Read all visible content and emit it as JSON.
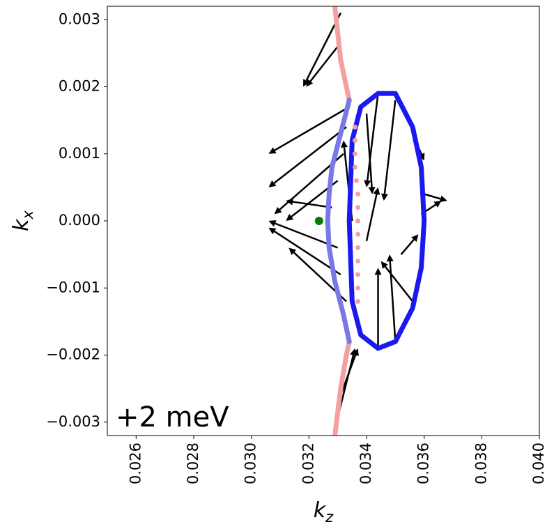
{
  "chart_data": {
    "type": "scatter",
    "xlabel": {
      "symbol": "k",
      "subscript": "z"
    },
    "ylabel": {
      "symbol": "k",
      "subscript": "x"
    },
    "annotation": "+2 meV",
    "xlim": [
      0.025,
      0.04
    ],
    "ylim": [
      -0.0032,
      0.0032
    ],
    "xticks": [
      0.026,
      0.028,
      {
        "value": 0.03,
        "label": "0.030"
      },
      0.032,
      0.034,
      0.036,
      0.038,
      {
        "value": 0.04,
        "label": "0.040"
      }
    ],
    "yticks": [
      {
        "value": -0.003,
        "label": "−0.003"
      },
      {
        "value": -0.002,
        "label": "−0.002"
      },
      {
        "value": -0.001,
        "label": "−0.001"
      },
      {
        "value": 0,
        "label": "0.000"
      },
      0.001,
      0.002,
      0.003
    ],
    "series": [
      {
        "type": "quiver",
        "color": "#000000",
        "x": [
          0.0334,
          0.0333,
          0.0332,
          0.033,
          0.0331,
          0.033,
          0.0328,
          0.033,
          0.0331,
          0.0333,
          0.0329,
          0.0331,
          0.0335,
          0.034,
          0.0352,
          0.0344,
          0.035,
          0.0356,
          0.036,
          0.0359,
          0.0344,
          0.035,
          0.0356,
          0.034
        ],
        "y": [
          0.0017,
          0.0014,
          0.001,
          0.0006,
          0.0031,
          0.0026,
          0.0002,
          -0.0004,
          -0.0008,
          -0.0012,
          -0.0031,
          -0.0026,
          0.0,
          -0.0003,
          -0.0005,
          0.0019,
          0.0018,
          0.0013,
          0.0004,
          0.0001,
          -0.0019,
          -0.0018,
          -0.0012,
          0.0016
        ],
        "u": [
          -0.0028,
          -0.0027,
          -0.0024,
          -0.0018,
          -0.0013,
          -0.0011,
          -0.0016,
          -0.0024,
          -0.0025,
          -0.002,
          0.0007,
          0.0006,
          -0.0003,
          0.0004,
          0.0006,
          -0.0004,
          -0.0004,
          0.0004,
          0.0008,
          0.0007,
          0.0,
          -0.0002,
          -0.0011,
          0.0002
        ],
        "v": [
          -0.0007,
          -0.0009,
          -0.0009,
          -0.0006,
          -0.0011,
          -0.0006,
          0.0001,
          0.0004,
          0.0007,
          0.0008,
          0.0012,
          0.0007,
          0.0012,
          0.0008,
          0.0003,
          -0.0014,
          -0.0015,
          -0.0004,
          -0.0001,
          0.0002,
          0.0012,
          0.0013,
          0.0006,
          -0.0012
        ]
      },
      {
        "type": "line",
        "color": "#f4a0a0",
        "x": [
          0.0329,
          0.0331,
          0.0333,
          0.0334,
          null,
          0.0334,
          0.0333,
          0.0331,
          0.0329
        ],
        "y": [
          0.0032,
          0.0024,
          0.002,
          0.0018,
          null,
          -0.0018,
          -0.002,
          -0.0025,
          -0.0032
        ]
      },
      {
        "type": "line",
        "color": "#7878e6",
        "x": [
          0.0334,
          0.0331,
          0.0328,
          0.0327,
          0.03265,
          0.0327,
          0.0329,
          0.0332,
          0.0334
        ],
        "y": [
          0.0018,
          0.0013,
          0.0008,
          0.0004,
          0.0,
          -0.0004,
          -0.0009,
          -0.0014,
          -0.0018
        ]
      },
      {
        "type": "line",
        "closed": true,
        "color": "#1a1aee",
        "x": [
          0.036,
          0.0359,
          0.0356,
          0.035,
          0.0344,
          0.0338,
          0.0335,
          0.03345,
          0.0334,
          0.03345,
          0.0335,
          0.0338,
          0.0344,
          0.035,
          0.0356,
          0.0359
        ],
        "y": [
          0.0,
          0.0008,
          0.0014,
          0.0019,
          0.0019,
          0.0017,
          0.0012,
          0.0006,
          0.0,
          -0.0006,
          -0.0012,
          -0.0017,
          -0.0019,
          -0.0018,
          -0.0013,
          -0.0007
        ]
      },
      {
        "type": "dots",
        "color": "#f4a0a0",
        "size": 3.5,
        "x": [
          0.0336,
          0.0336,
          0.0336,
          0.0336,
          0.03365,
          0.0337,
          0.0337,
          0.0337,
          0.0337,
          0.0337,
          0.0337,
          0.0337,
          0.0337,
          0.0337
        ],
        "y": [
          0.0014,
          0.0012,
          0.001,
          0.0008,
          0.0006,
          0.0004,
          0.0002,
          0.0,
          -0.0002,
          -0.0004,
          -0.0006,
          -0.0008,
          -0.001,
          -0.0012
        ]
      },
      {
        "type": "dots",
        "color": "#008000",
        "size": 6,
        "x": [
          0.03235
        ],
        "y": [
          0.0
        ]
      }
    ]
  }
}
